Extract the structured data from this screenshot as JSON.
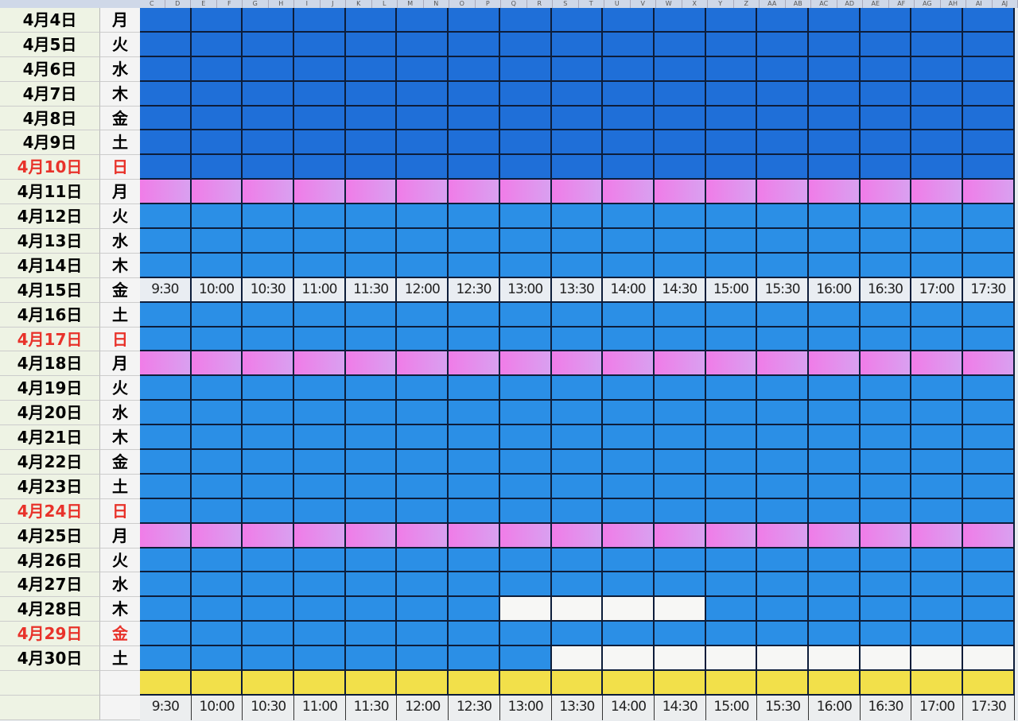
{
  "column_letters": [
    "C",
    "D",
    "E",
    "F",
    "G",
    "H",
    "I",
    "J",
    "K",
    "L",
    "M",
    "N",
    "O",
    "P",
    "Q",
    "R",
    "S",
    "T",
    "U",
    "V",
    "W",
    "X",
    "Y",
    "Z",
    "AA",
    "AB",
    "AC",
    "AD",
    "AE",
    "AF",
    "AG",
    "AH",
    "AI",
    "AJ"
  ],
  "times": [
    "9:30",
    "10:00",
    "10:30",
    "11:00",
    "11:30",
    "12:00",
    "12:30",
    "13:00",
    "13:30",
    "14:00",
    "14:30",
    "15:00",
    "15:30",
    "16:00",
    "16:30",
    "17:00",
    "17:30"
  ],
  "rows": [
    {
      "date": "4月4日",
      "dow": "月",
      "type": "pink"
    },
    {
      "date": "4月5日",
      "dow": "火"
    },
    {
      "date": "4月6日",
      "dow": "水"
    },
    {
      "date": "4月7日",
      "dow": "木"
    },
    {
      "date": "4月8日",
      "dow": "金"
    },
    {
      "date": "4月9日",
      "dow": "土"
    },
    {
      "date": "4月10日",
      "dow": "日",
      "holiday": true
    },
    {
      "date": "4月11日",
      "dow": "月",
      "type": "pink"
    },
    {
      "date": "4月12日",
      "dow": "火"
    },
    {
      "date": "4月13日",
      "dow": "水"
    },
    {
      "date": "4月14日",
      "dow": "木"
    },
    {
      "date": "4月15日",
      "dow": "金",
      "type": "labels"
    },
    {
      "date": "4月16日",
      "dow": "土"
    },
    {
      "date": "4月17日",
      "dow": "日",
      "holiday": true
    },
    {
      "date": "4月18日",
      "dow": "月",
      "type": "pink"
    },
    {
      "date": "4月19日",
      "dow": "火"
    },
    {
      "date": "4月20日",
      "dow": "水"
    },
    {
      "date": "4月21日",
      "dow": "木"
    },
    {
      "date": "4月22日",
      "dow": "金"
    },
    {
      "date": "4月23日",
      "dow": "土"
    },
    {
      "date": "4月24日",
      "dow": "日",
      "holiday": true
    },
    {
      "date": "4月25日",
      "dow": "月",
      "type": "pink"
    },
    {
      "date": "4月26日",
      "dow": "火"
    },
    {
      "date": "4月27日",
      "dow": "水"
    },
    {
      "date": "4月28日",
      "dow": "木",
      "free_slots": [
        "13:00",
        "13:30",
        "14:00",
        "14:30"
      ]
    },
    {
      "date": "4月29日",
      "dow": "金",
      "holiday": true
    },
    {
      "date": "4月30日",
      "dow": "土",
      "free_slots": [
        "13:30",
        "14:00",
        "14:30",
        "15:00",
        "15:30",
        "16:00",
        "16:30",
        "17:00",
        "17:30"
      ]
    }
  ],
  "colors": {
    "slot": "#2b8fe6",
    "monday": "#f07ce8",
    "free": "#f7f7f5",
    "total": "#f2e04a",
    "holiday_text": "#e8322a"
  }
}
